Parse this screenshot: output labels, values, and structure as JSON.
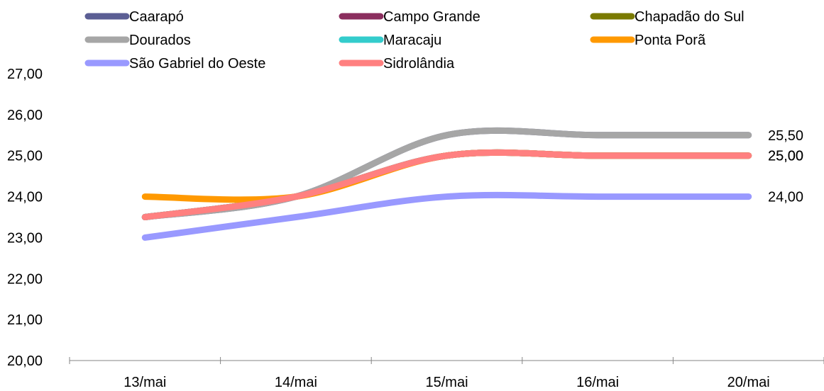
{
  "chart_data": {
    "type": "line",
    "title": "",
    "xlabel": "",
    "ylabel": "",
    "categories": [
      "13/mai",
      "14/mai",
      "15/mai",
      "16/mai",
      "20/mai"
    ],
    "ylim": [
      20,
      27
    ],
    "yticks": [
      "20,00",
      "21,00",
      "22,00",
      "23,00",
      "24,00",
      "25,00",
      "26,00",
      "27,00"
    ],
    "grid": false,
    "legend_position": "top",
    "series": [
      {
        "name": "Caarapó",
        "color": "#5B5E94",
        "values": [
          23.5,
          24.0,
          25.5,
          25.5,
          25.5
        ]
      },
      {
        "name": "Campo Grande",
        "color": "#8B2E5E",
        "values": [
          23.5,
          24.0,
          25.0,
          25.0,
          25.0
        ]
      },
      {
        "name": "Chapadão do Sul",
        "color": "#7A7A00",
        "values": [
          23.5,
          24.0,
          25.0,
          25.0,
          25.0
        ]
      },
      {
        "name": "Dourados",
        "color": "#A6A6A6",
        "values": [
          23.5,
          24.0,
          25.5,
          25.5,
          25.5
        ]
      },
      {
        "name": "Maracaju",
        "color": "#33CCCC",
        "values": [
          23.5,
          24.0,
          25.0,
          25.0,
          25.0
        ]
      },
      {
        "name": "Ponta Porã",
        "color": "#FF9900",
        "values": [
          24.0,
          24.0,
          25.0,
          25.0,
          25.0
        ]
      },
      {
        "name": "São Gabriel do Oeste",
        "color": "#9999FF",
        "values": [
          23.0,
          23.5,
          24.0,
          24.0,
          24.0
        ]
      },
      {
        "name": "Sidrolândia",
        "color": "#FF8080",
        "values": [
          23.5,
          24.0,
          25.0,
          25.0,
          25.0
        ]
      }
    ],
    "end_labels": [
      "25,50",
      "25,00",
      "25,00",
      "24,00"
    ]
  }
}
